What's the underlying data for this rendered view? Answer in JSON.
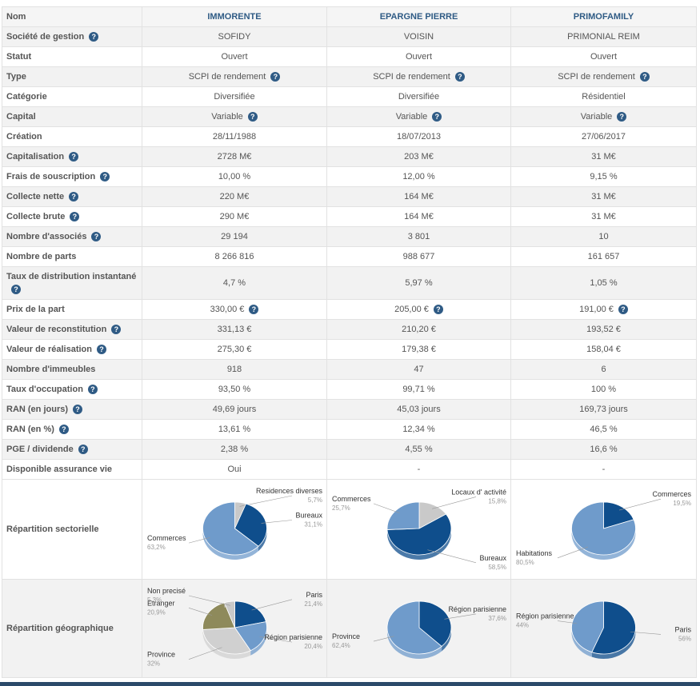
{
  "header": {
    "label": "Nom",
    "cols": [
      "IMMORENTE",
      "EPARGNE PIERRE",
      "PRIMOFAMILY"
    ]
  },
  "rows": [
    {
      "label": "Société de gestion",
      "help": true,
      "values": [
        "SOFIDY",
        "VOISIN",
        "PRIMONIAL REIM"
      ],
      "vhelp": false
    },
    {
      "label": "Statut",
      "help": false,
      "values": [
        "Ouvert",
        "Ouvert",
        "Ouvert"
      ],
      "vhelp": false
    },
    {
      "label": "Type",
      "help": false,
      "values": [
        "SCPI de rendement",
        "SCPI de rendement",
        "SCPI de rendement"
      ],
      "vhelp": true
    },
    {
      "label": "Catégorie",
      "help": false,
      "values": [
        "Diversifiée",
        "Diversifiée",
        "Résidentiel"
      ],
      "vhelp": false
    },
    {
      "label": "Capital",
      "help": false,
      "values": [
        "Variable",
        "Variable",
        "Variable"
      ],
      "vhelp": true
    },
    {
      "label": "Création",
      "help": false,
      "values": [
        "28/11/1988",
        "18/07/2013",
        "27/06/2017"
      ],
      "vhelp": false
    },
    {
      "label": "Capitalisation",
      "help": true,
      "values": [
        "2728 M€",
        "203 M€",
        "31 M€"
      ],
      "vhelp": false
    },
    {
      "label": "Frais de souscription",
      "help": true,
      "values": [
        "10,00 %",
        "12,00 %",
        "9,15 %"
      ],
      "vhelp": false
    },
    {
      "label": "Collecte nette",
      "help": true,
      "values": [
        "220 M€",
        "164 M€",
        "31 M€"
      ],
      "vhelp": false
    },
    {
      "label": "Collecte brute",
      "help": true,
      "values": [
        "290 M€",
        "164 M€",
        "31 M€"
      ],
      "vhelp": false
    },
    {
      "label": "Nombre d'associés",
      "help": true,
      "values": [
        "29 194",
        "3 801",
        "10"
      ],
      "vhelp": false
    },
    {
      "label": "Nombre de parts",
      "help": false,
      "values": [
        "8 266 816",
        "988 677",
        "161 657"
      ],
      "vhelp": false
    },
    {
      "label": "Taux de distribution instantané",
      "help": true,
      "values": [
        "4,7 %",
        "5,97 %",
        "1,05 %"
      ],
      "vhelp": false,
      "tall": true
    },
    {
      "label": "Prix de la part",
      "help": false,
      "values": [
        "330,00 €",
        "205,00 €",
        "191,00 €"
      ],
      "vhelp": true
    },
    {
      "label": "Valeur de reconstitution",
      "help": true,
      "values": [
        "331,13 €",
        "210,20 €",
        "193,52 €"
      ],
      "vhelp": false
    },
    {
      "label": "Valeur de réalisation",
      "help": true,
      "values": [
        "275,30 €",
        "179,38 €",
        "158,04 €"
      ],
      "vhelp": false
    },
    {
      "label": "Nombre d'immeubles",
      "help": false,
      "values": [
        "918",
        "47",
        "6"
      ],
      "vhelp": false
    },
    {
      "label": "Taux d'occupation",
      "help": true,
      "values": [
        "93,50 %",
        "99,71 %",
        "100 %"
      ],
      "vhelp": false
    },
    {
      "label": "RAN (en jours)",
      "help": true,
      "values": [
        "49,69 jours",
        "45,03 jours",
        "169,73 jours"
      ],
      "vhelp": false
    },
    {
      "label": "RAN (en %)",
      "help": true,
      "values": [
        "13,61 %",
        "12,34 %",
        "46,5 %"
      ],
      "vhelp": false
    },
    {
      "label": "PGE / dividende",
      "help": true,
      "values": [
        "2,38 %",
        "4,55 %",
        "16,6 %"
      ],
      "vhelp": false
    },
    {
      "label": "Disponible assurance vie",
      "help": false,
      "values": [
        "Oui",
        "-",
        "-"
      ],
      "vhelp": false
    }
  ],
  "help_glyph": "?",
  "sectorial": {
    "label": "Répartition sectorielle",
    "pies": [
      {
        "slices": [
          {
            "name": "Residences diverses",
            "value": "5,7%",
            "pct": 5.7,
            "color": "#c9c9c9"
          },
          {
            "name": "Bureaux",
            "value": "31,1%",
            "pct": 31.1,
            "color": "#0f4e8c"
          },
          {
            "name": "Commerces",
            "value": "63,2%",
            "pct": 63.2,
            "color": "#6f9bcb"
          }
        ]
      },
      {
        "slices": [
          {
            "name": "Locaux d' activité",
            "value": "15,8%",
            "pct": 15.8,
            "color": "#c9c9c9"
          },
          {
            "name": "Bureaux",
            "value": "58,5%",
            "pct": 58.5,
            "color": "#0f4e8c"
          },
          {
            "name": "Commerces",
            "value": "25,7%",
            "pct": 25.7,
            "color": "#6f9bcb"
          }
        ]
      },
      {
        "slices": [
          {
            "name": "Commerces",
            "value": "19,5%",
            "pct": 19.5,
            "color": "#0f4e8c"
          },
          {
            "name": "Habitations",
            "value": "80,5%",
            "pct": 80.5,
            "color": "#6f9bcb"
          }
        ]
      }
    ]
  },
  "geographic": {
    "label": "Répartition géographique",
    "pies": [
      {
        "slices": [
          {
            "name": "Paris",
            "value": "21,4%",
            "pct": 21.4,
            "color": "#0f4e8c"
          },
          {
            "name": "Région parisienne",
            "value": "20,4%",
            "pct": 20.4,
            "color": "#6f9bcb"
          },
          {
            "name": "Province",
            "value": "32%",
            "pct": 32,
            "color": "#d0d0d0"
          },
          {
            "name": "Etranger",
            "value": "20,9%",
            "pct": 20.9,
            "color": "#8e8a5b"
          },
          {
            "name": "Non precisé",
            "value": "5,3%",
            "pct": 5.3,
            "color": "#c9c9c9"
          }
        ]
      },
      {
        "slices": [
          {
            "name": "Région parisienne",
            "value": "37,6%",
            "pct": 37.6,
            "color": "#0f4e8c"
          },
          {
            "name": "Province",
            "value": "62,4%",
            "pct": 62.4,
            "color": "#6f9bcb"
          }
        ]
      },
      {
        "slices": [
          {
            "name": "Paris",
            "value": "56%",
            "pct": 56,
            "color": "#0f4e8c"
          },
          {
            "name": "Région parisienne",
            "value": "44%",
            "pct": 44,
            "color": "#6f9bcb"
          }
        ]
      }
    ]
  }
}
